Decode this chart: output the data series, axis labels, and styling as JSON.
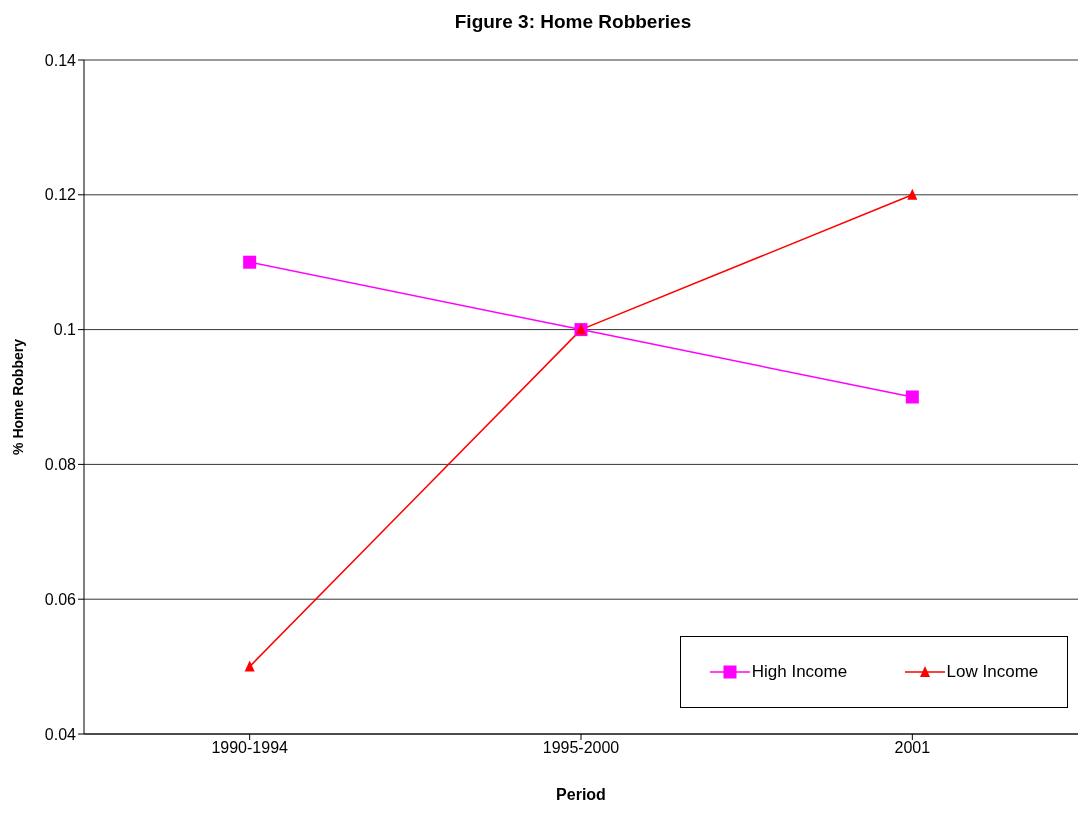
{
  "chart_data": {
    "type": "line",
    "title": "Figure 3: Home Robberies",
    "xlabel": "Period",
    "ylabel": "% Home Robbery",
    "categories": [
      "1990-1994",
      "1995-2000",
      "2001"
    ],
    "series": [
      {
        "name": "High Income",
        "color": "#ff00ff",
        "marker": "square",
        "values": [
          0.11,
          0.1,
          0.09
        ]
      },
      {
        "name": "Low Income",
        "color": "#ff0000",
        "marker": "triangle",
        "values": [
          0.05,
          0.1,
          0.12
        ]
      }
    ],
    "ylim": [
      0.04,
      0.14
    ],
    "yticks": [
      0.04,
      0.06,
      0.08,
      0.1,
      0.12,
      0.14
    ],
    "grid": "y",
    "legend": "bottom right",
    "line_style": "solid"
  }
}
